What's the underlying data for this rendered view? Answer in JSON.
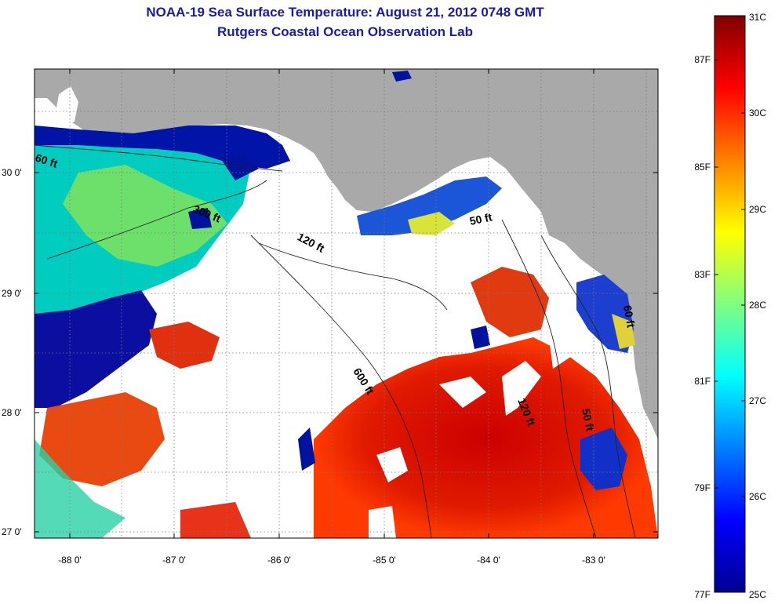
{
  "title": {
    "line1": "NOAA-19 Sea Surface Temperature:  August 21, 2012 0748 GMT",
    "line2": "Rutgers Coastal Ocean Observation Lab"
  },
  "axes": {
    "longitude_ticks": [
      "-88 0'",
      "-87 0'",
      "-86 0'",
      "-85 0'",
      "-84 0'",
      "-83 0'"
    ],
    "latitude_ticks": [
      "30 0'",
      "29 0'",
      "28 0'",
      "27 0'"
    ]
  },
  "contours": {
    "labels": [
      "60 ft",
      "300 ft",
      "120 ft",
      "50 ft",
      "600 ft",
      "120 ft",
      "50 ft",
      "60 ft"
    ]
  },
  "colorbar": {
    "celsius_labels": [
      "31C",
      "30C",
      "29C",
      "28C",
      "27C",
      "26C",
      "25C"
    ],
    "fahrenheit_labels": [
      "87F",
      "85F",
      "83F",
      "81F",
      "79F",
      "77F"
    ]
  },
  "colors": {
    "title": "#1a1aa6",
    "land": "#a9a9a9",
    "no_data": "#ffffff",
    "cold": "#00008f",
    "warm": "#8f0000"
  }
}
